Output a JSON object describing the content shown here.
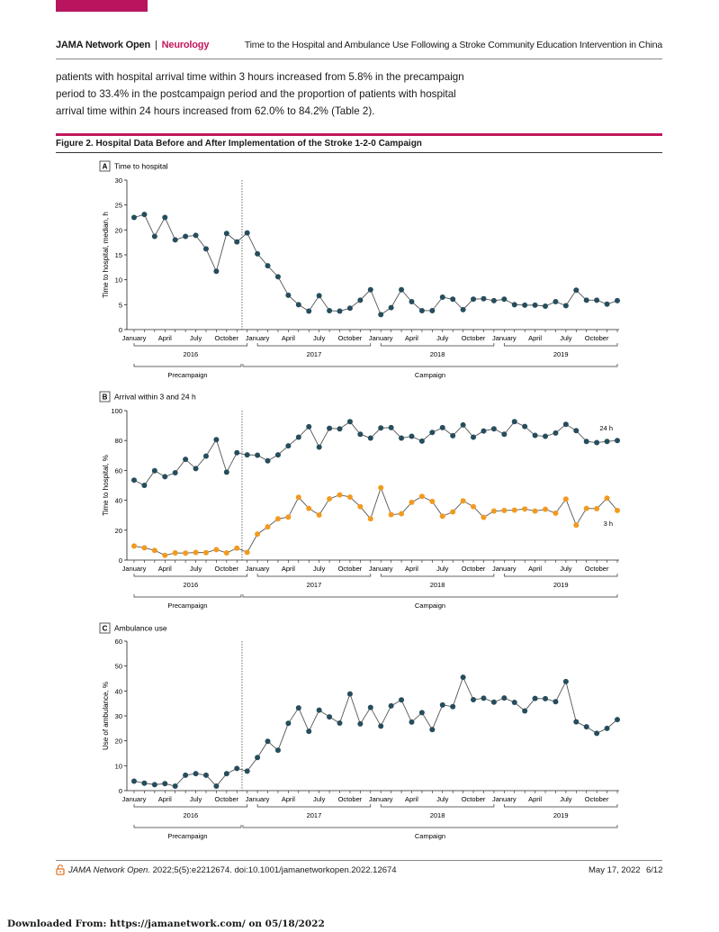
{
  "header": {
    "journal": "JAMA Network Open",
    "section": "Neurology",
    "running_title": "Time to the Hospital and Ambulance Use Following a Stroke Community Education Intervention in China"
  },
  "body_text": "patients with hospital arrival time within 3 hours increased from 5.8% in the precampaign period to 33.4% in the postcampaign period and the proportion of patients with hospital arrival time within 24 hours increased from 62.0% to 84.2% (Table 2).",
  "figure": {
    "title": "Figure 2. Hospital Data Before and After Implementation of the Stroke 1-2-0 Campaign"
  },
  "colors": {
    "brand": "#c2185b",
    "series_24h": "#264d5c",
    "series_3h": "#f29a1f"
  },
  "chart_data": [
    {
      "type": "line",
      "panel": "A",
      "title": "Time to hospital",
      "xlabel": "",
      "ylabel": "Time to hospital, median, h",
      "ylim": [
        0,
        30
      ],
      "yticks": [
        0,
        5,
        10,
        15,
        20,
        25,
        30
      ],
      "x_tick_labels": [
        "January",
        "April",
        "July",
        "October"
      ],
      "years": [
        "2016",
        "2017",
        "2018",
        "2019"
      ],
      "periods": [
        "Precampaign",
        "Campaign"
      ],
      "campaign_start_month_index": 10.5,
      "grid": false,
      "series": [
        {
          "values": [
            22.5,
            23.1,
            18.7,
            22.5,
            18.0,
            18.7,
            18.9,
            16.2,
            11.7,
            19.3,
            17.6,
            19.4,
            15.2,
            12.8,
            10.6,
            6.9,
            5.0,
            3.7,
            6.8,
            3.8,
            3.7,
            4.3,
            5.9,
            8.0,
            3.0,
            4.4,
            8.0,
            5.6,
            3.8,
            3.8,
            6.5,
            6.1,
            4.0,
            6.1,
            6.2,
            5.8,
            6.1,
            5.0,
            4.9,
            4.9,
            4.7,
            5.6,
            4.8,
            7.9,
            5.9,
            5.9,
            5.1,
            5.8
          ]
        }
      ]
    },
    {
      "type": "line",
      "panel": "B",
      "title": "Arrival within 3 and 24 h",
      "xlabel": "",
      "ylabel": "Time to hospital, %",
      "ylim": [
        0,
        100
      ],
      "yticks": [
        0,
        20,
        40,
        60,
        80,
        100
      ],
      "x_tick_labels": [
        "January",
        "April",
        "July",
        "October"
      ],
      "years": [
        "2016",
        "2017",
        "2018",
        "2019"
      ],
      "periods": [
        "Precampaign",
        "Campaign"
      ],
      "campaign_start_month_index": 10.5,
      "grid": false,
      "series": [
        {
          "name": "24 h",
          "values": [
            53.5,
            50.0,
            59.8,
            55.8,
            58.4,
            67.4,
            61.2,
            69.6,
            80.6,
            58.8,
            71.8,
            70.4,
            70.2,
            66.4,
            70.4,
            76.4,
            82.2,
            89.2,
            75.6,
            88.2,
            87.8,
            92.6,
            84.2,
            81.6,
            88.4,
            88.6,
            81.6,
            82.8,
            79.6,
            85.4,
            88.6,
            83.2,
            90.4,
            82.2,
            86.4,
            87.8,
            84.2,
            92.6,
            89.4,
            83.4,
            82.8,
            85.0,
            90.8,
            86.6,
            79.4,
            78.6,
            79.4,
            80.0
          ]
        },
        {
          "name": "3 h",
          "values": [
            9.4,
            8.2,
            6.5,
            3.2,
            4.8,
            4.7,
            5.1,
            5.0,
            7.0,
            4.8,
            8.0,
            5.2,
            17.4,
            22.2,
            27.6,
            28.8,
            42.0,
            34.6,
            30.2,
            41.0,
            43.6,
            42.2,
            35.8,
            27.6,
            48.4,
            30.4,
            31.0,
            38.6,
            42.6,
            39.2,
            29.4,
            32.2,
            39.6,
            35.8,
            28.6,
            32.8,
            33.2,
            33.4,
            34.2,
            32.8,
            34.0,
            31.4,
            40.8,
            23.4,
            34.6,
            34.4,
            41.4,
            33.2
          ]
        }
      ]
    },
    {
      "type": "line",
      "panel": "C",
      "title": "Ambulance use",
      "xlabel": "",
      "ylabel": "Use of ambulance, %",
      "ylim": [
        0,
        60
      ],
      "yticks": [
        0,
        10,
        20,
        30,
        40,
        50,
        60
      ],
      "x_tick_labels": [
        "January",
        "April",
        "July",
        "October"
      ],
      "years": [
        "2016",
        "2017",
        "2018",
        "2019"
      ],
      "periods": [
        "Precampaign",
        "Campaign"
      ],
      "campaign_start_month_index": 10.5,
      "grid": false,
      "series": [
        {
          "values": [
            3.8,
            3.0,
            2.4,
            2.8,
            1.8,
            6.2,
            6.8,
            6.2,
            1.8,
            6.8,
            8.9,
            7.8,
            13.3,
            19.8,
            16.2,
            27.0,
            33.2,
            23.8,
            32.3,
            29.6,
            27.1,
            38.8,
            26.8,
            33.4,
            25.9,
            34.0,
            36.4,
            27.5,
            31.3,
            24.5,
            34.4,
            33.7,
            45.5,
            36.5,
            37.1,
            35.5,
            37.2,
            35.4,
            32.0,
            37.0,
            36.9,
            35.7,
            43.8,
            27.6,
            25.6,
            23.0,
            25.0,
            28.5
          ]
        }
      ]
    }
  ],
  "footer": {
    "journal": "JAMA Network Open.",
    "citation": "2022;5(5):e2212674. doi:10.1001/jamanetworkopen.2022.12674",
    "date": "May 17, 2022",
    "page": "6/12"
  },
  "download_note": "Downloaded From: https://jamanetwork.com/ on 05/18/2022"
}
